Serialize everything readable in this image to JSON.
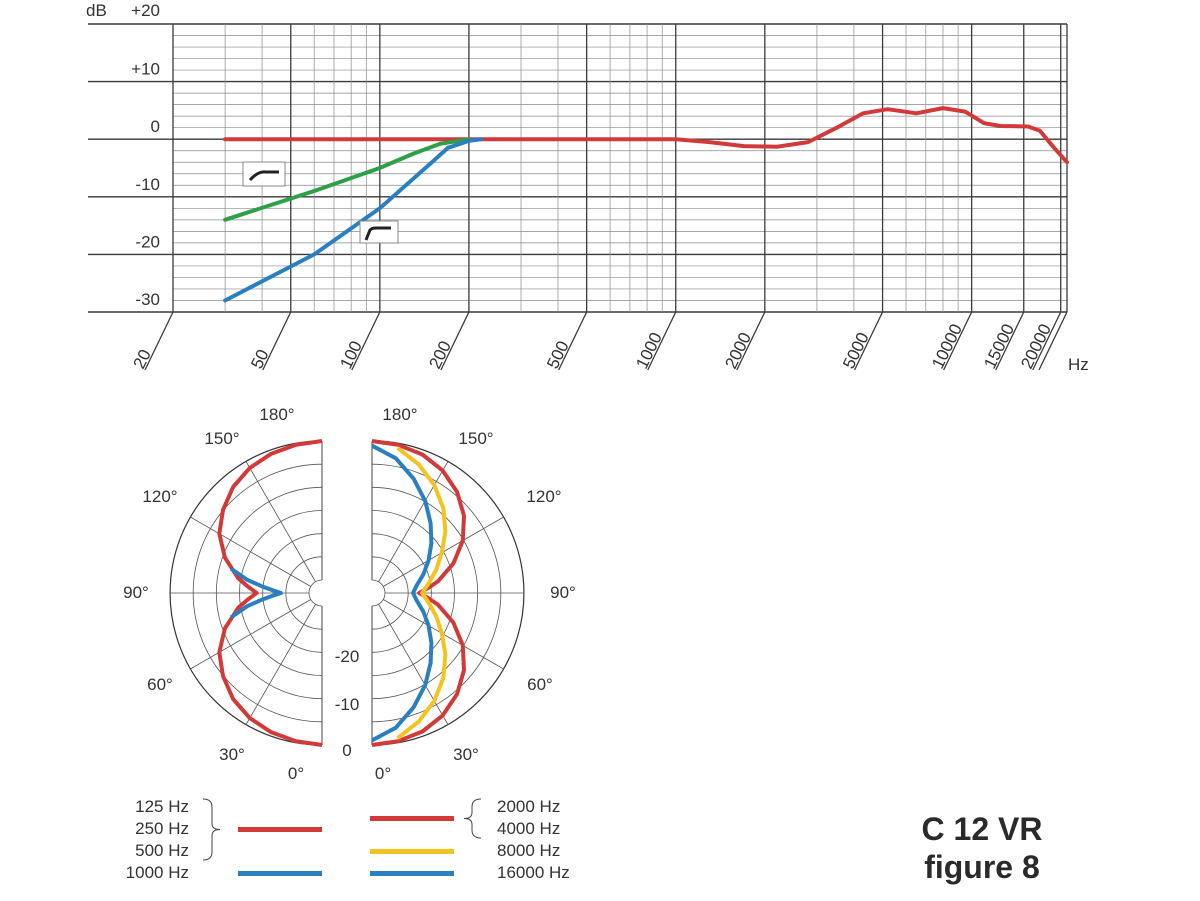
{
  "chart_data": [
    {
      "type": "line",
      "title": "",
      "xlabel": "Hz",
      "ylabel": "dB",
      "x_scale": "log",
      "xlim": [
        20,
        21000
      ],
      "ylim": [
        -30,
        20
      ],
      "grid": true,
      "y_ticks": [
        "+20",
        "+10",
        "0",
        "-10",
        "-20",
        "-30"
      ],
      "x_ticks": [
        "20",
        "50",
        "100",
        "200",
        "500",
        "1000",
        "2000",
        "5000",
        "10000",
        "15000",
        "20000"
      ],
      "series": [
        {
          "color": "#d23a3a",
          "points": [
            [
              30,
              0
            ],
            [
              300,
              0
            ],
            [
              1000,
              0
            ],
            [
              1300,
              -0.5
            ],
            [
              1700,
              -1.2
            ],
            [
              2200,
              -1.3
            ],
            [
              2800,
              -0.5
            ],
            [
              3500,
              2
            ],
            [
              4300,
              4.5
            ],
            [
              5200,
              5.2
            ],
            [
              6500,
              4.5
            ],
            [
              8000,
              5.4
            ],
            [
              9500,
              4.8
            ],
            [
              11000,
              2.8
            ],
            [
              12500,
              2.3
            ],
            [
              15500,
              2.2
            ],
            [
              17000,
              1.5
            ],
            [
              19000,
              -1.5
            ],
            [
              21000,
              -4
            ]
          ]
        },
        {
          "color": "#2ea048",
          "points": [
            [
              30,
              -14
            ],
            [
              60,
              -9
            ],
            [
              100,
              -5
            ],
            [
              130,
              -2.5
            ],
            [
              160,
              -0.8
            ],
            [
              200,
              0
            ]
          ]
        },
        {
          "color": "#2a7fc0",
          "points": [
            [
              30,
              -28
            ],
            [
              60,
              -20
            ],
            [
              100,
              -12
            ],
            [
              150,
              -4
            ],
            [
              170,
              -1.5
            ],
            [
              200,
              -0.3
            ],
            [
              220,
              0
            ]
          ]
        }
      ]
    },
    {
      "type": "polar",
      "caption": "C 12 VR figure 8",
      "angle_labels": [
        "180°",
        "150°",
        "120°",
        "90°",
        "60°",
        "30°",
        "0°"
      ],
      "radial_labels": [
        "-20",
        "-10",
        "0"
      ],
      "left_half": {
        "series": [
          {
            "color": "#d23a3a",
            "freqs": [
              "125 Hz",
              "250 Hz",
              "500 Hz"
            ],
            "radius_frac": [
              [
                0,
                1
              ],
              [
                10,
                0.99
              ],
              [
                20,
                0.975
              ],
              [
                30,
                0.95
              ],
              [
                40,
                0.91
              ],
              [
                50,
                0.85
              ],
              [
                60,
                0.78
              ],
              [
                70,
                0.68
              ],
              [
                80,
                0.56
              ],
              [
                85,
                0.49
              ],
              [
                90,
                0.43
              ]
            ]
          },
          {
            "color": "#2a7fc0",
            "freqs": [
              "1000 Hz"
            ],
            "radius_frac": [
              [
                75,
                0.62
              ],
              [
                80,
                0.5
              ],
              [
                84,
                0.39
              ],
              [
                87,
                0.32
              ],
              [
                90,
                0.27
              ]
            ]
          }
        ]
      },
      "right_half": {
        "series": [
          {
            "color": "#d23a3a",
            "freqs": [
              "2000 Hz",
              "4000 Hz"
            ],
            "radius_frac": [
              [
                0,
                1
              ],
              [
                10,
                0.99
              ],
              [
                20,
                0.97
              ],
              [
                30,
                0.93
              ],
              [
                40,
                0.87
              ],
              [
                50,
                0.79
              ],
              [
                60,
                0.69
              ],
              [
                70,
                0.57
              ],
              [
                80,
                0.44
              ],
              [
                85,
                0.37
              ],
              [
                90,
                0.31
              ]
            ]
          },
          {
            "color": "#f3c320",
            "freqs": [
              "8000 Hz"
            ],
            "radius_frac": [
              [
                10,
                0.97
              ],
              [
                20,
                0.9
              ],
              [
                30,
                0.82
              ],
              [
                40,
                0.73
              ],
              [
                50,
                0.63
              ],
              [
                60,
                0.53
              ],
              [
                70,
                0.45
              ],
              [
                80,
                0.38
              ],
              [
                90,
                0.33
              ]
            ]
          },
          {
            "color": "#2a7fc0",
            "freqs": [
              "16000 Hz"
            ],
            "radius_frac": [
              [
                0,
                0.97
              ],
              [
                10,
                0.9
              ],
              [
                20,
                0.8
              ],
              [
                30,
                0.7
              ],
              [
                40,
                0.6
              ],
              [
                50,
                0.51
              ],
              [
                60,
                0.43
              ],
              [
                70,
                0.36
              ],
              [
                80,
                0.3
              ],
              [
                90,
                0.27
              ]
            ]
          }
        ]
      },
      "legend_left": [
        {
          "labels": [
            "125 Hz",
            "250 Hz",
            "500 Hz"
          ],
          "color": "#d23a3a"
        },
        {
          "labels": [
            "1000 Hz"
          ],
          "color": "#2a7fc0"
        }
      ],
      "legend_right": [
        {
          "labels": [
            "2000 Hz",
            "4000 Hz"
          ],
          "color": "#d23a3a"
        },
        {
          "labels": [
            "8000 Hz"
          ],
          "color": "#f3c320"
        },
        {
          "labels": [
            "16000 Hz"
          ],
          "color": "#2a7fc0"
        }
      ]
    }
  ],
  "figure": {
    "title_line1": "C 12 VR",
    "title_line2": "figure 8"
  }
}
